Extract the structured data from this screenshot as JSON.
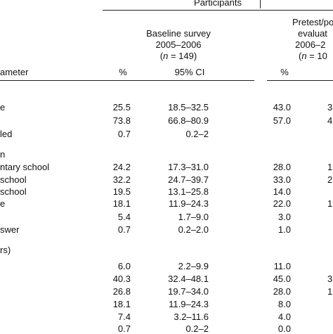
{
  "header": {
    "participants": "Participants",
    "baseline_title": "Baseline survey",
    "baseline_years": "2005–2006",
    "baseline_n": "(n = 149)",
    "pretest_title": "Pretest/po",
    "pretest_sub": "evaluat",
    "pretest_years": "2006–2",
    "pretest_n": "(n = 10"
  },
  "columns": {
    "parameter": "ameter",
    "pct": "%",
    "ci": "95% CI",
    "pct2": "%"
  },
  "rows": [
    {
      "label": "e",
      "pct": "25.5",
      "ci": "18.5–32.5",
      "pct2": "43.0",
      "tail": "3"
    },
    {
      "label": "",
      "pct": "73.8",
      "ci": "66.8–80.9",
      "pct2": "57.0",
      "tail": "4"
    },
    {
      "label": "led",
      "pct": "0.7",
      "ci": "0.2–2",
      "pct2": "",
      "tail": ""
    },
    {
      "label": "n",
      "pct": "",
      "ci": "",
      "pct2": "",
      "tail": ""
    },
    {
      "label": "ntary school",
      "pct": "24.2",
      "ci": "17.3–31.0",
      "pct2": "28.0",
      "tail": "1"
    },
    {
      "label": "school",
      "pct": "32.2",
      "ci": "24.7–39.7",
      "pct2": "33.0",
      "tail": "2"
    },
    {
      "label": "school",
      "pct": "19.5",
      "ci": "13.1–25.8",
      "pct2": "14.0",
      "tail": ""
    },
    {
      "label": "e",
      "pct": "18.1",
      "ci": "11.9–24.3",
      "pct2": "22.0",
      "tail": "1"
    },
    {
      "label": "",
      "pct": "5.4",
      "ci": "1.7–9.0",
      "pct2": "3.0",
      "tail": ""
    },
    {
      "label": "swer",
      "pct": "0.7",
      "ci": "0.2–2.0",
      "pct2": "1.0",
      "tail": ""
    },
    {
      "label": "rs)",
      "pct": "",
      "ci": "",
      "pct2": "",
      "tail": ""
    },
    {
      "label": "",
      "pct": "6.0",
      "ci": "2.2–9.9",
      "pct2": "11.0",
      "tail": ""
    },
    {
      "label": "",
      "pct": "40.3",
      "ci": "32.4–48.1",
      "pct2": "45.0",
      "tail": "3"
    },
    {
      "label": "",
      "pct": "26.8",
      "ci": "19.7–34.0",
      "pct2": "28.0",
      "tail": "1"
    },
    {
      "label": "",
      "pct": "18.1",
      "ci": "11.9–24.3",
      "pct2": "8.0",
      "tail": ""
    },
    {
      "label": "",
      "pct": "7.4",
      "ci": "3.2–11.6",
      "pct2": "4.0",
      "tail": ""
    },
    {
      "label": "",
      "pct": "0.7",
      "ci": "0.2–2",
      "pct2": "0.0",
      "tail": ""
    }
  ]
}
